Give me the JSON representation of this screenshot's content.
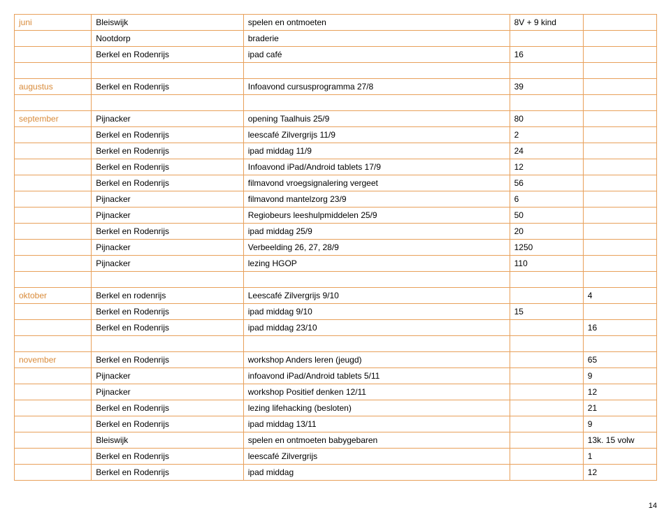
{
  "colors": {
    "border": "#e8a05a",
    "month": "#d98b3a",
    "text": "#000000",
    "background": "#ffffff"
  },
  "rows": [
    {
      "c1": "juni",
      "c2": "Bleiswijk",
      "c3": "spelen en ontmoeten",
      "c4": "8V + 9 kind",
      "c5": ""
    },
    {
      "c1": "",
      "c2": "Nootdorp",
      "c3": "braderie",
      "c4": "",
      "c5": ""
    },
    {
      "c1": "",
      "c2": "Berkel en Rodenrijs",
      "c3": "ipad café",
      "c4": "16",
      "c5": ""
    },
    {
      "c1": "",
      "c2": "",
      "c3": "",
      "c4": "",
      "c5": ""
    },
    {
      "c1": "augustus",
      "c2": "Berkel en Rodenrijs",
      "c3": "Infoavond cursusprogramma 27/8",
      "c4": "39",
      "c5": ""
    },
    {
      "c1": "",
      "c2": "",
      "c3": "",
      "c4": "",
      "c5": ""
    },
    {
      "c1": "september",
      "c2": "Pijnacker",
      "c3": "opening Taalhuis 25/9",
      "c4": "80",
      "c5": ""
    },
    {
      "c1": "",
      "c2": "Berkel en Rodenrijs",
      "c3": "leescafé Zilvergrijs 11/9",
      "c4": "2",
      "c5": ""
    },
    {
      "c1": "",
      "c2": "Berkel en Rodenrijs",
      "c3": "ipad middag 11/9",
      "c4": "24",
      "c5": ""
    },
    {
      "c1": "",
      "c2": "Berkel en Rodenrijs",
      "c3": "Infoavond iPad/Android tablets 17/9",
      "c4": "12",
      "c5": ""
    },
    {
      "c1": "",
      "c2": "Berkel en Rodenrijs",
      "c3": "filmavond vroegsignalering vergeet",
      "c4": "56",
      "c5": ""
    },
    {
      "c1": "",
      "c2": "Pijnacker",
      "c3": "filmavond mantelzorg 23/9",
      "c4": "6",
      "c5": ""
    },
    {
      "c1": "",
      "c2": "Pijnacker",
      "c3": "Regiobeurs leeshulpmiddelen 25/9",
      "c4": "50",
      "c5": ""
    },
    {
      "c1": "",
      "c2": "Berkel en Rodenrijs",
      "c3": "ipad middag 25/9",
      "c4": "20",
      "c5": ""
    },
    {
      "c1": "",
      "c2": "Pijnacker",
      "c3": "Verbeelding 26, 27, 28/9",
      "c4": "1250",
      "c5": ""
    },
    {
      "c1": "",
      "c2": "Pijnacker",
      "c3": "lezing HGOP",
      "c4": "110",
      "c5": ""
    },
    {
      "c1": "",
      "c2": "",
      "c3": "",
      "c4": "",
      "c5": ""
    },
    {
      "c1": "oktober",
      "c2": "Berkel en rodenrijs",
      "c3": "Leescafé Zilvergrijs 9/10",
      "c4": "",
      "c5": "4"
    },
    {
      "c1": "",
      "c2": "Berkel en Rodenrijs",
      "c3": "ipad middag 9/10",
      "c4": "15",
      "c5": ""
    },
    {
      "c1": "",
      "c2": "Berkel en Rodenrijs",
      "c3": "ipad middag 23/10",
      "c4": "",
      "c5": "16"
    },
    {
      "c1": "",
      "c2": "",
      "c3": "",
      "c4": "",
      "c5": ""
    },
    {
      "c1": "november",
      "c2": "Berkel en Rodenrijs",
      "c3": "workshop Anders leren (jeugd)",
      "c4": "",
      "c5": "65"
    },
    {
      "c1": "",
      "c2": "Pijnacker",
      "c3": "infoavond iPad/Android tablets 5/11",
      "c4": "",
      "c5": "9"
    },
    {
      "c1": "",
      "c2": "Pijnacker",
      "c3": "workshop Positief denken 12/11",
      "c4": "",
      "c5": "12"
    },
    {
      "c1": "",
      "c2": "Berkel en Rodenrijs",
      "c3": "lezing lifehacking (besloten)",
      "c4": "",
      "c5": "21"
    },
    {
      "c1": "",
      "c2": "Berkel en Rodenrijs",
      "c3": "ipad middag 13/11",
      "c4": "",
      "c5": "9"
    },
    {
      "c1": "",
      "c2": "Bleiswijk",
      "c3": "spelen en ontmoeten babygebaren",
      "c4": "",
      "c5": "13k. 15 volw"
    },
    {
      "c1": "",
      "c2": "Berkel en Rodenrijs",
      "c3": "leescafé Zilvergrijs",
      "c4": "",
      "c5": "1"
    },
    {
      "c1": "",
      "c2": "Berkel en Rodenrijs",
      "c3": "ipad middag",
      "c4": "",
      "c5": "12"
    }
  ],
  "page_number": "14"
}
